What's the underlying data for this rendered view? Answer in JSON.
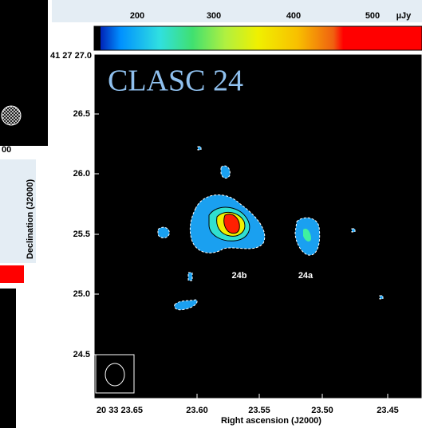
{
  "title": "CLASC 24",
  "colorbar": {
    "ticks": [
      "200",
      "300",
      "400",
      "500"
    ],
    "unit": "µJy"
  },
  "y_axis": {
    "label": "Declination (J2000)",
    "ticks": [
      "41 27 27.0",
      "26.5",
      "26.0",
      "25.5",
      "25.0",
      "24.5"
    ]
  },
  "x_axis": {
    "label": "Right ascension (J2000)",
    "ticks": [
      "20 33 23.65",
      "23.60",
      "23.55",
      "23.50",
      "23.45"
    ]
  },
  "sources": [
    "24b",
    "24a"
  ],
  "side_panel": {
    "tick": "00"
  }
}
